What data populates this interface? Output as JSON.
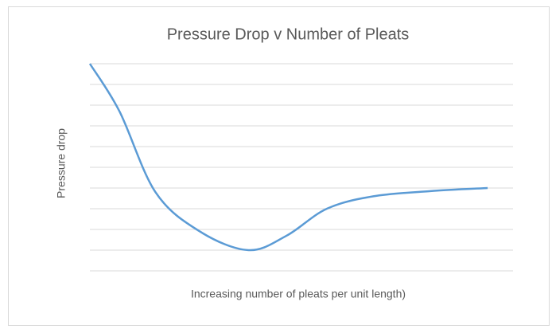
{
  "chart_data": {
    "type": "line",
    "title": "Pressure Drop v Number of Pleats",
    "x_label": "Increasing number of pleats per unit length)",
    "y_label": "Pressure drop",
    "x": [
      0,
      1.4,
      3.1,
      5.2,
      7.5,
      9.3,
      11.2,
      13.4,
      16.1,
      18.8
    ],
    "series": [
      {
        "color": "#5b9bd5",
        "values": [
          10,
          7.7,
          3.8,
          1.9,
          1.0,
          1.7,
          3.0,
          3.6,
          3.85,
          4.0
        ]
      }
    ],
    "xlim": [
      0,
      20
    ],
    "ylim": [
      0,
      10
    ],
    "yticks": [
      0,
      1,
      2,
      3,
      4,
      5,
      6,
      7,
      8,
      9,
      10
    ],
    "grid": true,
    "smooth": true
  }
}
